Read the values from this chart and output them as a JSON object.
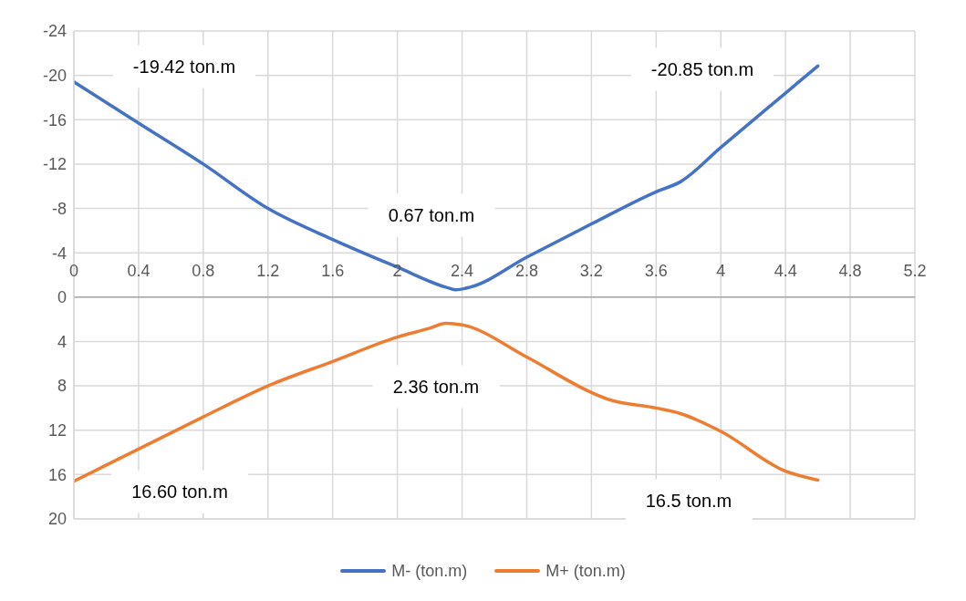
{
  "chart_data": {
    "type": "line",
    "xlim": [
      0,
      5.2
    ],
    "xticks": [
      0,
      0.4,
      0.8,
      1.2,
      1.6,
      2,
      2.4,
      2.8,
      3.2,
      3.6,
      4,
      4.4,
      4.8,
      5.2
    ],
    "ylim": [
      20,
      -24
    ],
    "yticks": [
      -24,
      -20,
      -16,
      -12,
      -8,
      -4,
      0,
      4,
      8,
      12,
      16,
      20
    ],
    "grid": true,
    "legend": "bottom",
    "marker": "none",
    "line_style": "solid",
    "series": [
      {
        "name": "M- (ton.m)",
        "color": "#4472c4",
        "x": [
          0,
          0.4,
          0.8,
          1.2,
          1.6,
          2,
          2.3,
          2.36,
          2.45,
          2.8,
          3.2,
          3.6,
          3.75,
          4,
          4.4,
          4.6
        ],
        "values": [
          -19.42,
          -15.7,
          -12,
          -8,
          -5.2,
          -2.7,
          -0.9,
          -0.67,
          -0.9,
          -3.6,
          -6.6,
          -9.5,
          -10.4,
          -13.5,
          -18.4,
          -20.85
        ]
      },
      {
        "name": "M+ (ton.m)",
        "color": "#ed7d31",
        "x": [
          0,
          0.4,
          0.8,
          1.2,
          1.6,
          2,
          2.2,
          2.3,
          2.4,
          2.8,
          3.2,
          3.3,
          3.6,
          3.75,
          4,
          4.4,
          4.6
        ],
        "values": [
          16.6,
          13.7,
          10.8,
          8,
          5.8,
          3.6,
          2.8,
          2.36,
          2.5,
          5.4,
          8.6,
          9.2,
          10,
          10.5,
          12.1,
          15.7,
          16.5
        ]
      }
    ],
    "annotations": [
      "-19.42 ton.m",
      "-20.85 ton.m",
      "0.67 ton.m",
      "2.36 ton.m",
      "16.60 ton.m",
      "16.5 ton.m"
    ]
  }
}
